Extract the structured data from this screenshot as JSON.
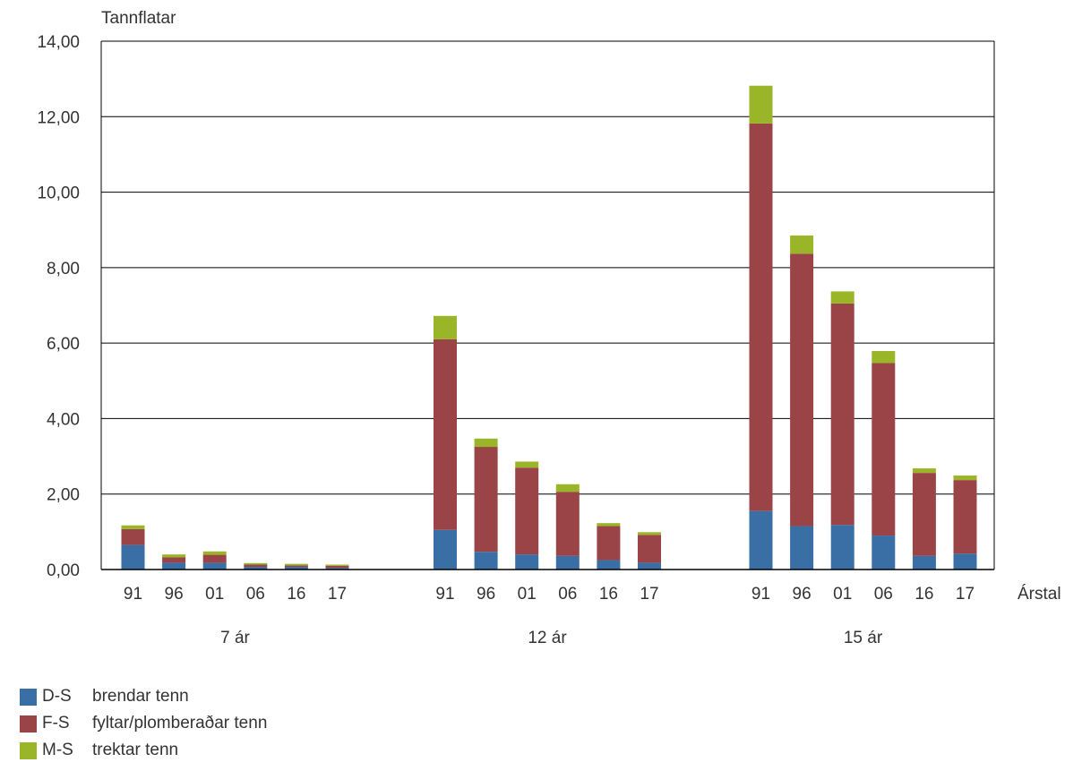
{
  "chart_data": {
    "type": "bar",
    "stacked": true,
    "ylabel": "Tannflatar",
    "xlabel": "Árstal",
    "ylim": [
      0,
      14
    ],
    "yticks": [
      "0,00",
      "2,00",
      "4,00",
      "6,00",
      "8,00",
      "10,00",
      "12,00",
      "14,00"
    ],
    "grid": true,
    "legend_position": "bottom-left",
    "groups": [
      {
        "label": "7 ár",
        "categories": [
          "91",
          "96",
          "01",
          "06",
          "16",
          "17"
        ],
        "series": [
          {
            "name": "D-S",
            "values": [
              0.65,
              0.18,
              0.18,
              0.07,
              0.07,
              0.04
            ]
          },
          {
            "name": "F-S",
            "values": [
              0.42,
              0.14,
              0.21,
              0.06,
              0.04,
              0.06
            ]
          },
          {
            "name": "M-S",
            "values": [
              0.1,
              0.08,
              0.09,
              0.04,
              0.04,
              0.03
            ]
          }
        ]
      },
      {
        "label": "12 ár",
        "categories": [
          "91",
          "96",
          "01",
          "06",
          "16",
          "17"
        ],
        "series": [
          {
            "name": "D-S",
            "values": [
              1.05,
              0.47,
              0.4,
              0.36,
              0.25,
              0.18
            ]
          },
          {
            "name": "F-S",
            "values": [
              5.05,
              2.78,
              2.3,
              1.7,
              0.9,
              0.74
            ]
          },
          {
            "name": "M-S",
            "values": [
              0.62,
              0.22,
              0.16,
              0.2,
              0.08,
              0.07
            ]
          }
        ]
      },
      {
        "label": "15 ár",
        "categories": [
          "91",
          "96",
          "01",
          "06",
          "16",
          "17"
        ],
        "series": [
          {
            "name": "D-S",
            "values": [
              1.55,
              1.15,
              1.18,
              0.9,
              0.36,
              0.42
            ]
          },
          {
            "name": "F-S",
            "values": [
              10.27,
              7.22,
              5.87,
              4.57,
              2.2,
              1.95
            ]
          },
          {
            "name": "M-S",
            "values": [
              1.0,
              0.48,
              0.32,
              0.32,
              0.12,
              0.12
            ]
          }
        ]
      }
    ],
    "colors": {
      "D-S": "#3a6fa6",
      "F-S": "#9b4448",
      "M-S": "#9bb528"
    }
  },
  "legend": [
    {
      "code": "D-S",
      "label": "brendar tenn",
      "color": "#3a6fa6"
    },
    {
      "code": "F-S",
      "label": "fyltar/plomberaðar tenn",
      "color": "#9b4448"
    },
    {
      "code": "M-S",
      "label": "trektar tenn",
      "color": "#9bb528"
    }
  ]
}
